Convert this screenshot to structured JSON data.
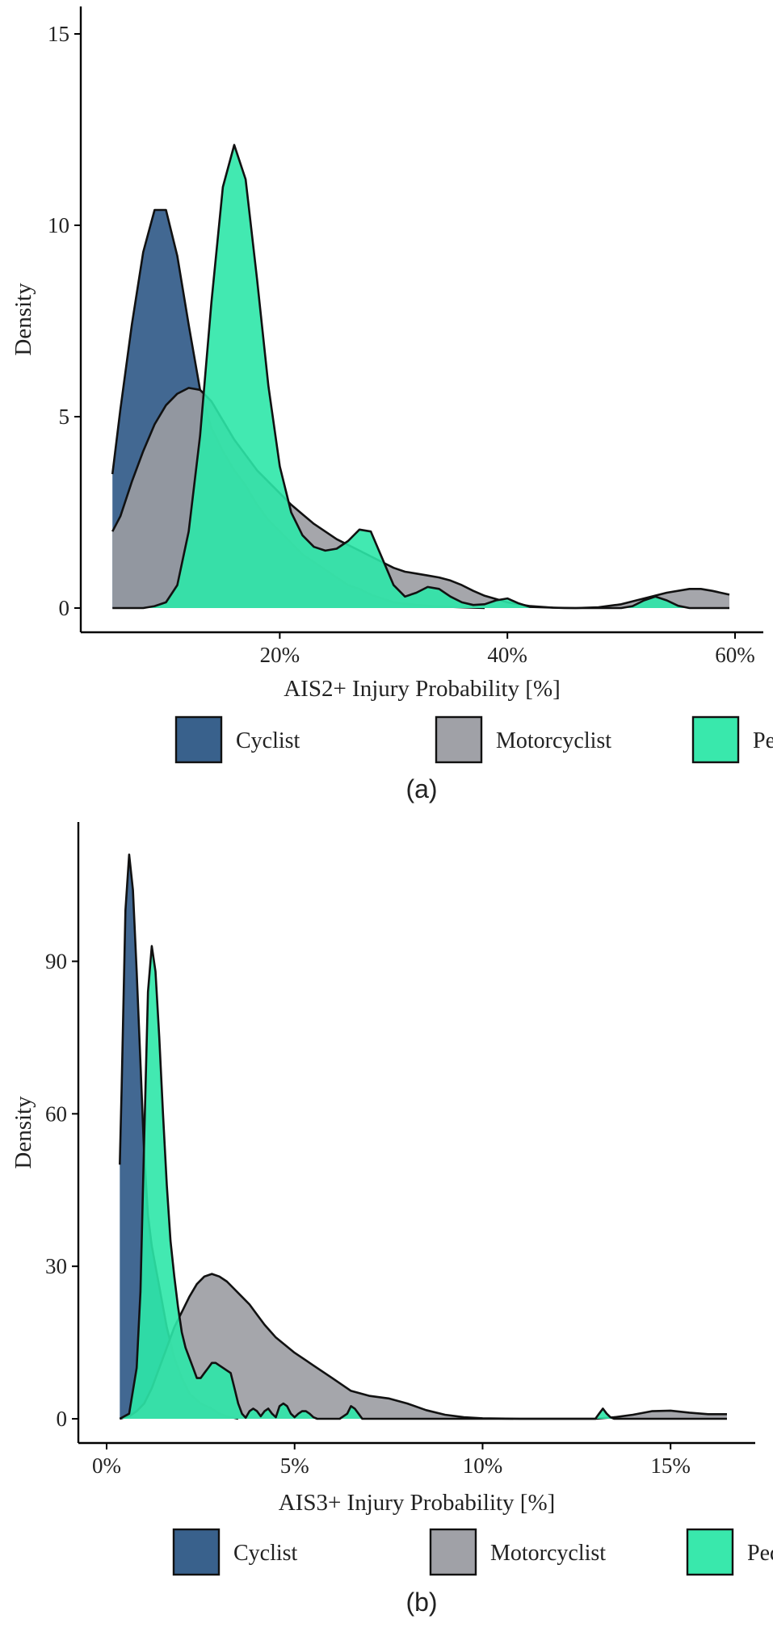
{
  "chart_data": [
    {
      "type": "area",
      "subplot_label": "(a)",
      "xlabel": "AIS2+ Injury Probability [%]",
      "ylabel": "Density",
      "xlim": [
        5,
        60
      ],
      "ylim": [
        0,
        15
      ],
      "x_ticks": [
        {
          "value": 20,
          "label": "20%"
        },
        {
          "value": 40,
          "label": "40%"
        },
        {
          "value": 60,
          "label": "60%"
        }
      ],
      "y_ticks": [
        {
          "value": 0,
          "label": "0"
        },
        {
          "value": 5,
          "label": "5"
        },
        {
          "value": 10,
          "label": "10"
        },
        {
          "value": 15,
          "label": "15"
        }
      ],
      "legend": [
        "Cyclist",
        "Motorcyclist",
        "Pedestrian"
      ],
      "legend_position": "bottom",
      "grid": false,
      "series": [
        {
          "name": "Cyclist",
          "color": "#2e5886",
          "x": [
            5.3,
            6,
            7,
            8,
            9,
            10,
            11,
            12,
            13,
            14,
            15,
            16,
            17,
            18,
            19,
            20,
            21,
            22,
            23,
            24,
            25,
            26,
            27,
            28,
            29,
            30,
            32,
            34,
            36,
            38
          ],
          "values": [
            3.5,
            5.2,
            7.4,
            9.3,
            10.4,
            10.4,
            9.2,
            7.4,
            5.7,
            4.7,
            4.1,
            3.6,
            3.2,
            2.7,
            2.3,
            2.0,
            1.7,
            1.4,
            1.2,
            1.0,
            0.8,
            0.6,
            0.5,
            0.35,
            0.25,
            0.15,
            0.08,
            0.04,
            0.02,
            0
          ]
        },
        {
          "name": "Motorcyclist",
          "color": "#9b9ca2",
          "x": [
            5.3,
            6,
            7,
            8,
            9,
            10,
            11,
            12,
            13,
            14,
            15,
            16,
            18,
            20,
            21,
            22,
            23,
            24,
            25,
            26,
            27,
            28,
            29,
            30,
            31,
            32,
            33,
            34,
            35,
            36,
            37,
            38,
            40,
            42,
            44,
            46,
            48,
            50,
            52,
            54,
            56,
            57,
            58,
            59.5
          ],
          "values": [
            2.0,
            2.4,
            3.3,
            4.1,
            4.8,
            5.3,
            5.6,
            5.75,
            5.7,
            5.4,
            4.9,
            4.4,
            3.6,
            3.0,
            2.7,
            2.45,
            2.2,
            2.0,
            1.8,
            1.65,
            1.5,
            1.35,
            1.2,
            1.05,
            0.95,
            0.9,
            0.85,
            0.8,
            0.72,
            0.6,
            0.45,
            0.32,
            0.15,
            0.05,
            0.01,
            0.0,
            0.02,
            0.1,
            0.25,
            0.4,
            0.5,
            0.5,
            0.45,
            0.35
          ]
        },
        {
          "name": "Pedestrian",
          "color": "#2ee7a8",
          "x": [
            5.3,
            8,
            9,
            10,
            11,
            12,
            13,
            14,
            15,
            16,
            17,
            18,
            19,
            20,
            21,
            22,
            23,
            24,
            25,
            26,
            27,
            28,
            29,
            30,
            31,
            32,
            33,
            34,
            35,
            36,
            37,
            38,
            39,
            40,
            41,
            42,
            45,
            50,
            51,
            52,
            53,
            54,
            55,
            56,
            59.5
          ],
          "values": [
            0,
            0,
            0.05,
            0.15,
            0.6,
            2.0,
            4.5,
            8.0,
            11.0,
            12.1,
            11.2,
            8.6,
            5.8,
            3.7,
            2.5,
            1.9,
            1.6,
            1.5,
            1.55,
            1.75,
            2.05,
            2.0,
            1.3,
            0.6,
            0.3,
            0.4,
            0.55,
            0.5,
            0.3,
            0.15,
            0.08,
            0.1,
            0.2,
            0.25,
            0.12,
            0.03,
            0,
            0,
            0.05,
            0.2,
            0.3,
            0.2,
            0.06,
            0,
            0
          ]
        }
      ]
    },
    {
      "type": "area",
      "subplot_label": "(b)",
      "xlabel": "AIS3+ Injury Probability [%]",
      "ylabel": "Density",
      "xlim": [
        0,
        16.5
      ],
      "ylim": [
        0,
        112
      ],
      "x_ticks": [
        {
          "value": 0,
          "label": "0%"
        },
        {
          "value": 5,
          "label": "5%"
        },
        {
          "value": 10,
          "label": "10%"
        },
        {
          "value": 15,
          "label": "15%"
        }
      ],
      "y_ticks": [
        {
          "value": 0,
          "label": "0"
        },
        {
          "value": 30,
          "label": "30"
        },
        {
          "value": 60,
          "label": "60"
        },
        {
          "value": 90,
          "label": "90"
        }
      ],
      "legend": [
        "Cyclist",
        "Motorcyclist",
        "Pedestrian"
      ],
      "legend_position": "bottom",
      "grid": false,
      "series": [
        {
          "name": "Cyclist",
          "color": "#2e5886",
          "x": [
            0.35,
            0.4,
            0.5,
            0.6,
            0.7,
            0.8,
            0.9,
            1.0,
            1.1,
            1.2,
            1.3,
            1.4,
            1.5,
            1.6,
            1.8,
            2.0,
            2.2,
            2.5,
            2.8,
            3.0,
            3.2,
            3.5
          ],
          "values": [
            50,
            65,
            100,
            111,
            104,
            88,
            70,
            52,
            40,
            34,
            30,
            26,
            22,
            18,
            12,
            8,
            5,
            3,
            2,
            1,
            0.5,
            0
          ]
        },
        {
          "name": "Motorcyclist",
          "color": "#9b9ca2",
          "x": [
            0.35,
            0.6,
            0.8,
            1.0,
            1.2,
            1.4,
            1.6,
            1.8,
            2.0,
            2.2,
            2.4,
            2.6,
            2.8,
            3.0,
            3.2,
            3.4,
            3.6,
            3.8,
            4.0,
            4.2,
            4.5,
            5.0,
            5.5,
            6.0,
            6.5,
            7.0,
            7.5,
            8.0,
            8.5,
            9.0,
            9.5,
            10.0,
            11,
            12,
            13,
            13.5,
            14,
            14.5,
            15,
            15.5,
            16,
            16.5
          ],
          "values": [
            0,
            0.5,
            1.5,
            3,
            6,
            10,
            14,
            18,
            21,
            24,
            26.5,
            28,
            28.5,
            28,
            27,
            25.5,
            24,
            22.5,
            20.5,
            18.5,
            16,
            13,
            10.5,
            8,
            5.5,
            4.5,
            4,
            3,
            1.7,
            0.8,
            0.3,
            0.1,
            0,
            0,
            0,
            0.3,
            0.8,
            1.5,
            1.6,
            1.2,
            0.9,
            0.9
          ]
        },
        {
          "name": "Pedestrian",
          "color": "#2ee7a8",
          "x": [
            0.35,
            0.6,
            0.8,
            0.9,
            1.0,
            1.1,
            1.2,
            1.3,
            1.4,
            1.5,
            1.6,
            1.7,
            1.8,
            1.9,
            2.0,
            2.1,
            2.2,
            2.3,
            2.4,
            2.5,
            2.6,
            2.7,
            2.8,
            2.9,
            3.0,
            3.1,
            3.2,
            3.3,
            3.4,
            3.5,
            3.6,
            3.7,
            3.8,
            3.9,
            4.0,
            4.1,
            4.2,
            4.3,
            4.4,
            4.5,
            4.6,
            4.7,
            4.8,
            4.9,
            5.0,
            5.1,
            5.2,
            5.3,
            5.4,
            5.5,
            5.6,
            5.8,
            6.0,
            6.2,
            6.4,
            6.5,
            6.6,
            6.7,
            6.8,
            7.0,
            13.0,
            13.1,
            13.2,
            13.3,
            13.4,
            13.5,
            14.0,
            16.5
          ],
          "values": [
            0,
            1,
            10,
            25,
            55,
            84,
            93,
            88,
            75,
            60,
            46,
            35,
            28,
            22,
            17,
            14,
            12,
            10,
            8,
            8,
            9,
            10,
            11,
            11,
            10.5,
            10,
            9.5,
            9,
            6,
            3,
            1,
            0.2,
            1.5,
            2,
            1.5,
            0.5,
            1.5,
            2,
            1,
            0.3,
            2.5,
            3,
            2.5,
            1,
            0.3,
            1,
            1.5,
            1.5,
            1,
            0.3,
            0,
            0,
            0,
            0,
            1,
            2.5,
            2,
            1,
            0,
            0,
            0,
            1,
            2,
            1,
            0.3,
            0,
            0,
            0
          ]
        }
      ]
    }
  ]
}
